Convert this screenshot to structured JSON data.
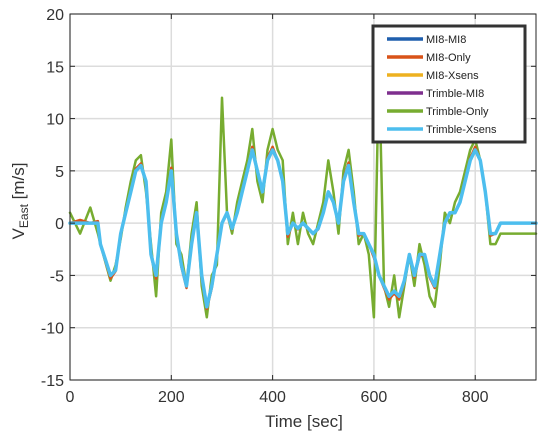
{
  "chart_data": {
    "type": "line",
    "title": "",
    "xlabel": "Time [sec]",
    "ylabel": "V",
    "ylabel_sub": "East",
    "ylabel_unit": " [m/s]",
    "xlim": [
      0,
      920
    ],
    "ylim": [
      -15,
      20
    ],
    "xticks": [
      0,
      200,
      400,
      600,
      800
    ],
    "yticks": [
      -15,
      -10,
      -5,
      0,
      5,
      10,
      15,
      20
    ],
    "x_tick_labels": [
      "0",
      "200",
      "400",
      "600",
      "800"
    ],
    "y_tick_labels": [
      "-15",
      "-10",
      "-5",
      "0",
      "5",
      "10",
      "15",
      "20"
    ],
    "grid": true,
    "legend_position": "top-right",
    "x": [
      0,
      20,
      40,
      55,
      60,
      80,
      90,
      100,
      110,
      120,
      130,
      140,
      150,
      160,
      170,
      180,
      190,
      200,
      210,
      220,
      230,
      240,
      250,
      260,
      270,
      280,
      290,
      300,
      310,
      320,
      330,
      340,
      350,
      360,
      370,
      380,
      390,
      400,
      410,
      420,
      430,
      440,
      450,
      460,
      470,
      480,
      490,
      500,
      510,
      520,
      530,
      540,
      550,
      560,
      570,
      580,
      590,
      600,
      610,
      620,
      630,
      640,
      650,
      660,
      670,
      680,
      690,
      700,
      710,
      720,
      730,
      740,
      750,
      760,
      770,
      780,
      790,
      800,
      810,
      820,
      830,
      840,
      850,
      860,
      870,
      880,
      890,
      900,
      910,
      920
    ],
    "series": [
      {
        "name": "MI8-MI8",
        "color": "#1f5fad",
        "values": [
          0,
          0,
          0,
          0,
          -2,
          -5,
          -4.5,
          -1,
          1,
          3,
          5,
          5.5,
          4,
          -3,
          -5,
          0,
          2,
          5,
          -1,
          -4,
          -6,
          -2,
          1,
          -5,
          -8,
          -6,
          -3,
          0,
          1,
          -0.5,
          1,
          3,
          5,
          7,
          5,
          3,
          6,
          7,
          6,
          4,
          -1,
          0,
          -0.5,
          0,
          -0.5,
          -1,
          -0.5,
          1,
          3,
          2,
          0,
          4,
          5.5,
          2,
          -1,
          -1,
          -2,
          -3,
          -5,
          -6,
          -7,
          -6.5,
          -7,
          -5.5,
          -3,
          -5,
          -3,
          -3,
          -5,
          -6,
          -3,
          0,
          1,
          1,
          2,
          4,
          6,
          7,
          6,
          3,
          -1,
          -1,
          0,
          0,
          0,
          0,
          0,
          0,
          0,
          0
        ]
      },
      {
        "name": "MI8-Only",
        "color": "#d95319",
        "values": [
          0,
          0.3,
          0,
          0.2,
          -2,
          -5.3,
          -4.6,
          -1,
          1,
          3,
          5.2,
          5.7,
          4,
          -3,
          -5.3,
          0,
          2,
          5.3,
          -1,
          -4.2,
          -6.2,
          -2,
          1,
          -5.3,
          -8.2,
          -6.2,
          -3,
          0,
          1,
          -0.6,
          1,
          3,
          5,
          7.3,
          5,
          3,
          6.2,
          7.3,
          6,
          4,
          -1.3,
          0,
          -0.6,
          0,
          -0.6,
          -1,
          -0.6,
          1,
          3,
          2,
          0,
          4.2,
          5.8,
          2,
          -1.2,
          -1,
          -2,
          -3.3,
          -5,
          -6.2,
          -7.3,
          -6.7,
          -7.3,
          -5.7,
          -3,
          -5.2,
          -3.2,
          -3,
          -5.2,
          -6.2,
          -3,
          0,
          1,
          1,
          2,
          4.2,
          6.2,
          7.3,
          6,
          3,
          -1.2,
          -1,
          0,
          0,
          0,
          0,
          0,
          0,
          0,
          0
        ]
      },
      {
        "name": "MI8-Xsens",
        "color": "#edb120",
        "values": [
          0,
          0,
          0,
          0,
          -2,
          -5,
          -4.5,
          -1,
          1,
          3,
          5,
          5.5,
          4,
          -3,
          -5,
          0,
          2,
          5,
          -1,
          -4,
          -6,
          -2,
          1,
          -5,
          -8,
          -6,
          -3,
          0,
          1,
          -0.5,
          1,
          3,
          5,
          7,
          5,
          3,
          6,
          7,
          6,
          4,
          -1,
          0,
          -0.5,
          0,
          -0.5,
          -1,
          -0.5,
          1,
          3,
          2,
          0,
          4,
          5.5,
          2,
          -1,
          -1,
          -2,
          -3,
          -5,
          -6,
          -7,
          -6.5,
          -7,
          -5.5,
          -3,
          -5,
          -3,
          -3,
          -5,
          -6,
          -3,
          0,
          1,
          1,
          2,
          4,
          6,
          7,
          6,
          3,
          -1,
          -1,
          0,
          0,
          0,
          0,
          0,
          0,
          0,
          0
        ]
      },
      {
        "name": "Trimble-MI8",
        "color": "#7e2f8e",
        "values": [
          0,
          0,
          0,
          0,
          -2,
          -5,
          -4.5,
          -1,
          1,
          3,
          5,
          5.5,
          4,
          -3,
          -5,
          0,
          2,
          5,
          -1,
          -4,
          -6,
          -2,
          1,
          -5,
          -8,
          -6,
          -3,
          0,
          1,
          -0.5,
          1,
          3,
          5,
          7,
          5,
          3,
          6,
          7,
          6,
          4,
          -1,
          0,
          -0.5,
          0,
          -0.5,
          -1,
          -0.5,
          1,
          3,
          2,
          0,
          4,
          5.5,
          2,
          -1,
          -1,
          -2,
          -3,
          -5,
          -6,
          -7,
          -6.5,
          -7,
          -5.5,
          -3,
          -5,
          -3,
          -3,
          -5,
          -6,
          -3,
          0,
          1,
          1,
          2,
          4,
          6,
          7,
          6,
          3,
          -1,
          -1,
          0,
          0,
          0,
          0,
          0,
          0,
          0,
          0
        ]
      },
      {
        "name": "Trimble-Only",
        "color": "#77ac30",
        "values": [
          1,
          -1,
          1.5,
          -1,
          -2,
          -5.5,
          -4,
          -1.5,
          1.5,
          4,
          6,
          6.5,
          3,
          -2,
          -7,
          1,
          3,
          8,
          -2,
          -3,
          -6,
          -1,
          2,
          -6,
          -9,
          -5,
          -4,
          12,
          1,
          -1,
          2,
          4,
          6,
          9,
          4,
          2,
          7,
          9,
          7,
          6,
          -2,
          1,
          -2,
          1,
          -1,
          -2,
          0,
          2,
          6,
          3,
          -1,
          5,
          7,
          3,
          -2,
          -1,
          -3,
          -9,
          15,
          -6,
          -8,
          -5,
          -9,
          -6,
          -3,
          -6,
          -2,
          -4,
          -7,
          -8,
          -4,
          1,
          0,
          2,
          3,
          5,
          7,
          8,
          6,
          3,
          -2,
          -2,
          -1,
          -1,
          -1,
          -1,
          -1,
          -1,
          -1,
          -1
        ]
      },
      {
        "name": "Trimble-Xsens",
        "color": "#4dbeee",
        "values": [
          0,
          0,
          0,
          0,
          -2,
          -5,
          -4.5,
          -1,
          1,
          3,
          5,
          5.5,
          4,
          -3,
          -5,
          0,
          2,
          5,
          -1,
          -4,
          -6,
          -2,
          1,
          -5,
          -8,
          -6,
          -3,
          0,
          1,
          -0.5,
          1,
          3,
          5,
          7,
          5,
          3,
          6,
          7,
          6,
          4,
          -1,
          0,
          -0.5,
          0,
          -0.5,
          -1,
          -0.5,
          1,
          3,
          2,
          0,
          4,
          5.5,
          2,
          -1,
          -1,
          -2,
          -3,
          -5,
          -6,
          -7,
          -6.5,
          -7,
          -5.5,
          -3,
          -5,
          -3,
          -3,
          -5,
          -6,
          -3,
          0,
          1,
          1,
          2,
          4,
          6,
          7,
          6,
          3,
          -1,
          -1,
          0,
          0,
          0,
          0,
          0,
          0,
          0,
          0
        ]
      }
    ]
  }
}
